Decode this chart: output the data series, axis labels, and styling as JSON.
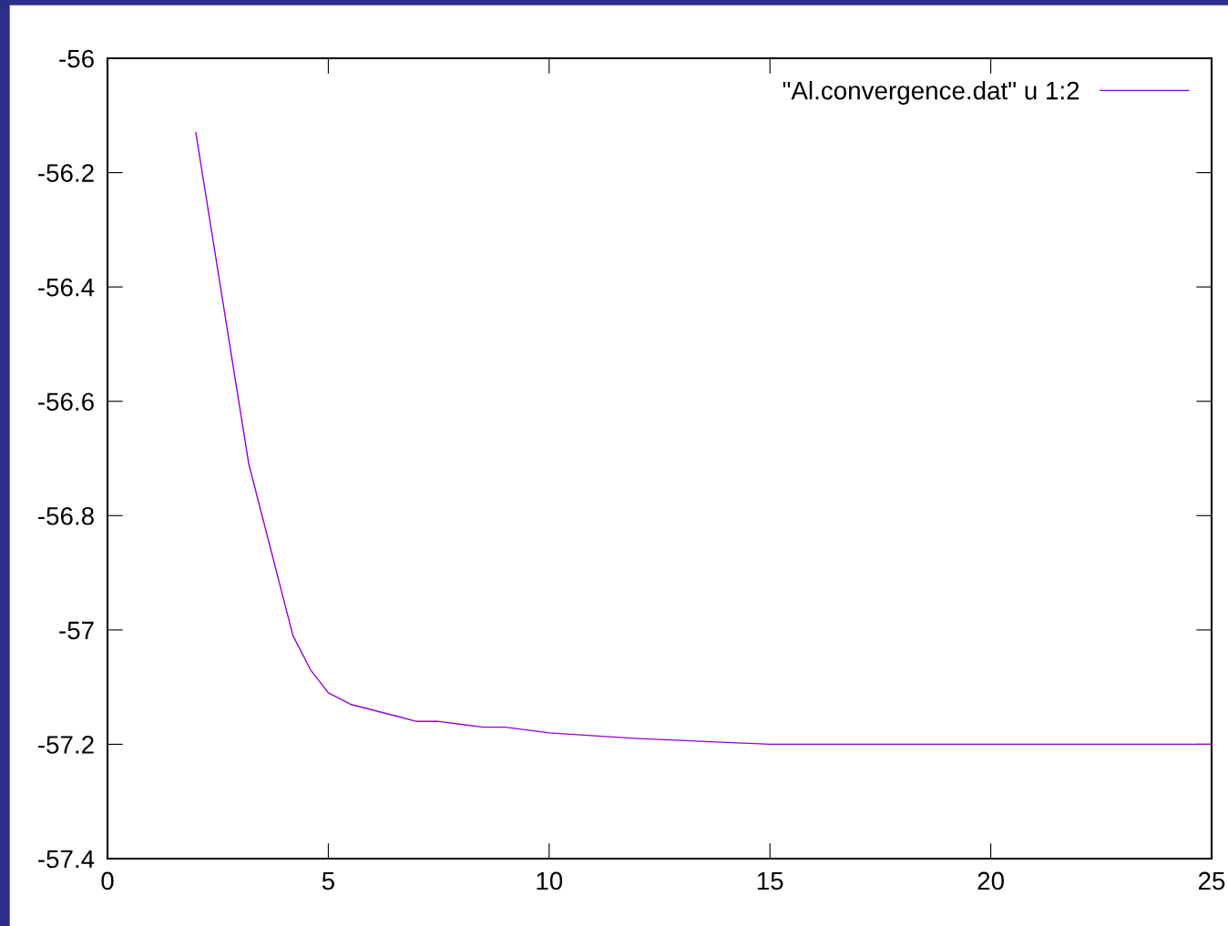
{
  "chart_data": {
    "type": "line",
    "x": [
      2,
      3.2,
      4.2,
      4.6,
      5,
      5.5,
      6.5,
      7,
      7.5,
      8.5,
      9,
      10,
      12,
      15,
      20,
      25
    ],
    "series": [
      {
        "name": "\"Al.convergence.dat\" u 1:2",
        "color": "#9400d3",
        "values": [
          -56.13,
          -56.71,
          -57.01,
          -57.07,
          -57.11,
          -57.13,
          -57.15,
          -57.16,
          -57.16,
          -57.17,
          -57.17,
          -57.18,
          -57.19,
          -57.2,
          -57.2,
          -57.2
        ]
      }
    ],
    "xlim": [
      0,
      25
    ],
    "xticks": [
      0,
      5,
      10,
      15,
      20,
      25
    ],
    "ylim": [
      -57.4,
      -56
    ],
    "yticks": [
      -57.4,
      -57.2,
      -57,
      -56.8,
      -56.6,
      -56.4,
      -56.2,
      -56
    ],
    "grid": false,
    "legend": "top right",
    "marker": "none",
    "line_style": "solid"
  }
}
